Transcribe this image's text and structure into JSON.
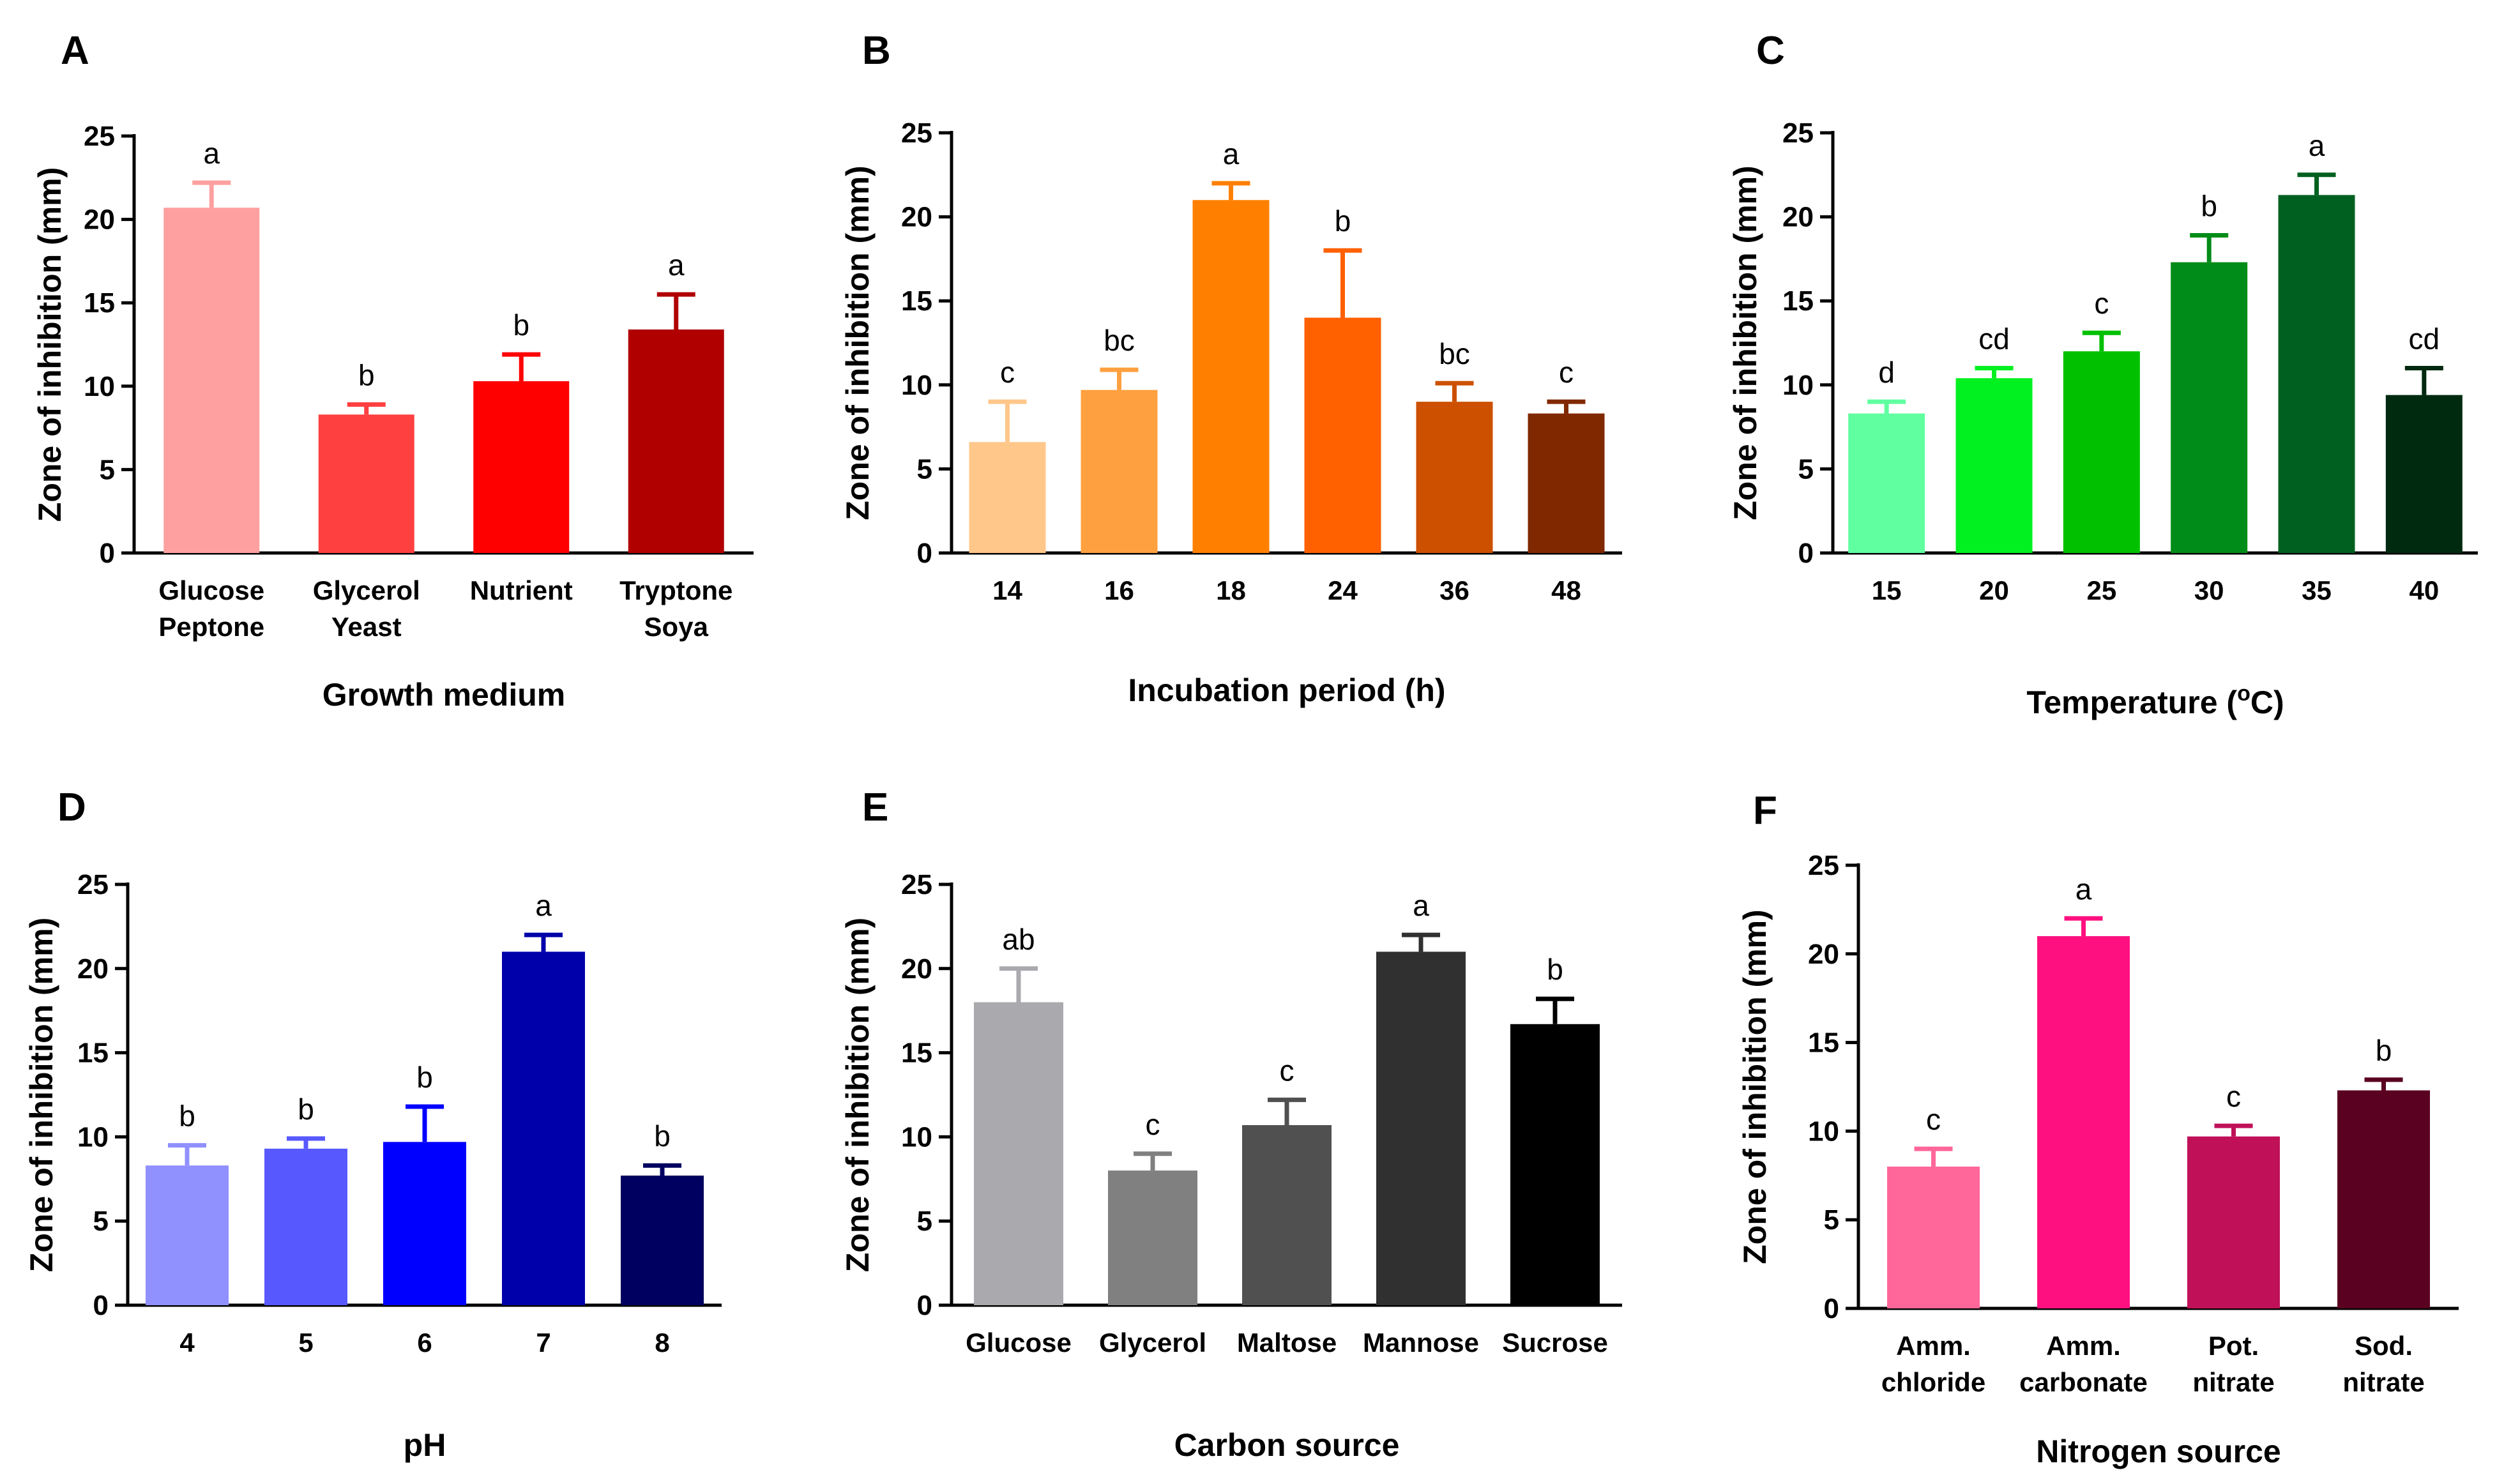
{
  "chart_data": [
    {
      "type": "bar",
      "panel": "A",
      "xlabel": "Growth medium",
      "ylabel": "Zone of inhibition (mm)",
      "ylim": [
        0,
        25
      ],
      "yticks": [
        "0",
        "5",
        "10",
        "15",
        "20",
        "25"
      ],
      "categories": [
        [
          "Glucose",
          "Peptone"
        ],
        [
          "Glycerol",
          "Yeast"
        ],
        [
          "Nutrient"
        ],
        [
          "Tryptone",
          "Soya"
        ]
      ],
      "values": [
        20.7,
        8.3,
        10.3,
        13.4
      ],
      "errors": [
        1.5,
        0.6,
        1.6,
        2.1
      ],
      "letters": [
        "a",
        "b",
        "b",
        "a"
      ],
      "colors": [
        "#ffa0a0",
        "#ff4040",
        "#ff0000",
        "#b00000"
      ]
    },
    {
      "type": "bar",
      "panel": "B",
      "xlabel": "Incubation period (h)",
      "ylabel": "Zone of inhibition (mm)",
      "ylim": [
        0,
        25
      ],
      "yticks": [
        "0",
        "5",
        "10",
        "15",
        "20",
        "25"
      ],
      "categories": [
        [
          "14"
        ],
        [
          "16"
        ],
        [
          "18"
        ],
        [
          "24"
        ],
        [
          "36"
        ],
        [
          "48"
        ]
      ],
      "values": [
        6.6,
        9.7,
        21.0,
        14.0,
        9.0,
        8.3
      ],
      "errors": [
        2.4,
        1.2,
        1.0,
        4.0,
        1.1,
        0.7
      ],
      "letters": [
        "c",
        "bc",
        "a",
        "b",
        "bc",
        "c"
      ],
      "colors": [
        "#ffc78a",
        "#ffa040",
        "#ff8000",
        "#ff6000",
        "#cc5000",
        "#802800"
      ]
    },
    {
      "type": "bar",
      "panel": "C",
      "xlabel_pre": "Temperature (",
      "xlabel_sup": "o",
      "xlabel_post": "C)",
      "ylabel": "Zone of inhibition (mm)",
      "ylim": [
        0,
        25
      ],
      "yticks": [
        "0",
        "5",
        "10",
        "15",
        "20",
        "25"
      ],
      "categories": [
        [
          "15"
        ],
        [
          "20"
        ],
        [
          "25"
        ],
        [
          "30"
        ],
        [
          "35"
        ],
        [
          "40"
        ]
      ],
      "values": [
        8.3,
        10.4,
        12.0,
        17.3,
        21.3,
        9.4
      ],
      "errors": [
        0.7,
        0.6,
        1.1,
        1.6,
        1.2,
        1.6
      ],
      "letters": [
        "d",
        "cd",
        "c",
        "b",
        "a",
        "cd"
      ],
      "colors": [
        "#60ffa0",
        "#00f020",
        "#00c000",
        "#008c18",
        "#006020",
        "#002a10"
      ]
    },
    {
      "type": "bar",
      "panel": "D",
      "xlabel": "pH",
      "ylabel": "Zone of inhibition (mm)",
      "ylim": [
        0,
        25
      ],
      "yticks": [
        "0",
        "5",
        "10",
        "15",
        "20",
        "25"
      ],
      "categories": [
        [
          "4"
        ],
        [
          "5"
        ],
        [
          "6"
        ],
        [
          "7"
        ],
        [
          "8"
        ]
      ],
      "values": [
        8.3,
        9.3,
        9.7,
        21.0,
        7.7
      ],
      "errors": [
        1.2,
        0.6,
        2.1,
        1.0,
        0.6
      ],
      "letters": [
        "b",
        "b",
        "b",
        "a",
        "b"
      ],
      "colors": [
        "#9090ff",
        "#5858ff",
        "#0000ff",
        "#0000aa",
        "#000060"
      ]
    },
    {
      "type": "bar",
      "panel": "E",
      "xlabel": "Carbon source",
      "ylabel": "Zone of inhibition (mm)",
      "ylim": [
        0,
        25
      ],
      "yticks": [
        "0",
        "5",
        "10",
        "15",
        "20",
        "25"
      ],
      "categories": [
        [
          "Glucose"
        ],
        [
          "Glycerol"
        ],
        [
          "Maltose"
        ],
        [
          "Mannose"
        ],
        [
          "Sucrose"
        ]
      ],
      "values": [
        18.0,
        8.0,
        10.7,
        21.0,
        16.7
      ],
      "errors": [
        2.0,
        1.0,
        1.5,
        1.0,
        1.5
      ],
      "letters": [
        "ab",
        "c",
        "c",
        "a",
        "b"
      ],
      "colors": [
        "#aaaaae",
        "#808080",
        "#505050",
        "#303030",
        "#000000"
      ]
    },
    {
      "type": "bar",
      "panel": "F",
      "xlabel": "Nitrogen source",
      "ylabel": "Zone of inhibition (mm)",
      "ylim": [
        0,
        25
      ],
      "yticks": [
        "0",
        "5",
        "10",
        "15",
        "20",
        "25"
      ],
      "categories": [
        [
          "Amm.",
          "chloride"
        ],
        [
          "Amm.",
          "carbonate"
        ],
        [
          "Pot.",
          "nitrate"
        ],
        [
          "Sod.",
          "nitrate"
        ]
      ],
      "values": [
        8.0,
        21.0,
        9.7,
        12.3
      ],
      "errors": [
        1.0,
        1.0,
        0.6,
        0.6
      ],
      "letters": [
        "c",
        "a",
        "c",
        "b"
      ],
      "colors": [
        "#ff6699",
        "#ff1080",
        "#c01058",
        "#5a0020"
      ]
    }
  ]
}
